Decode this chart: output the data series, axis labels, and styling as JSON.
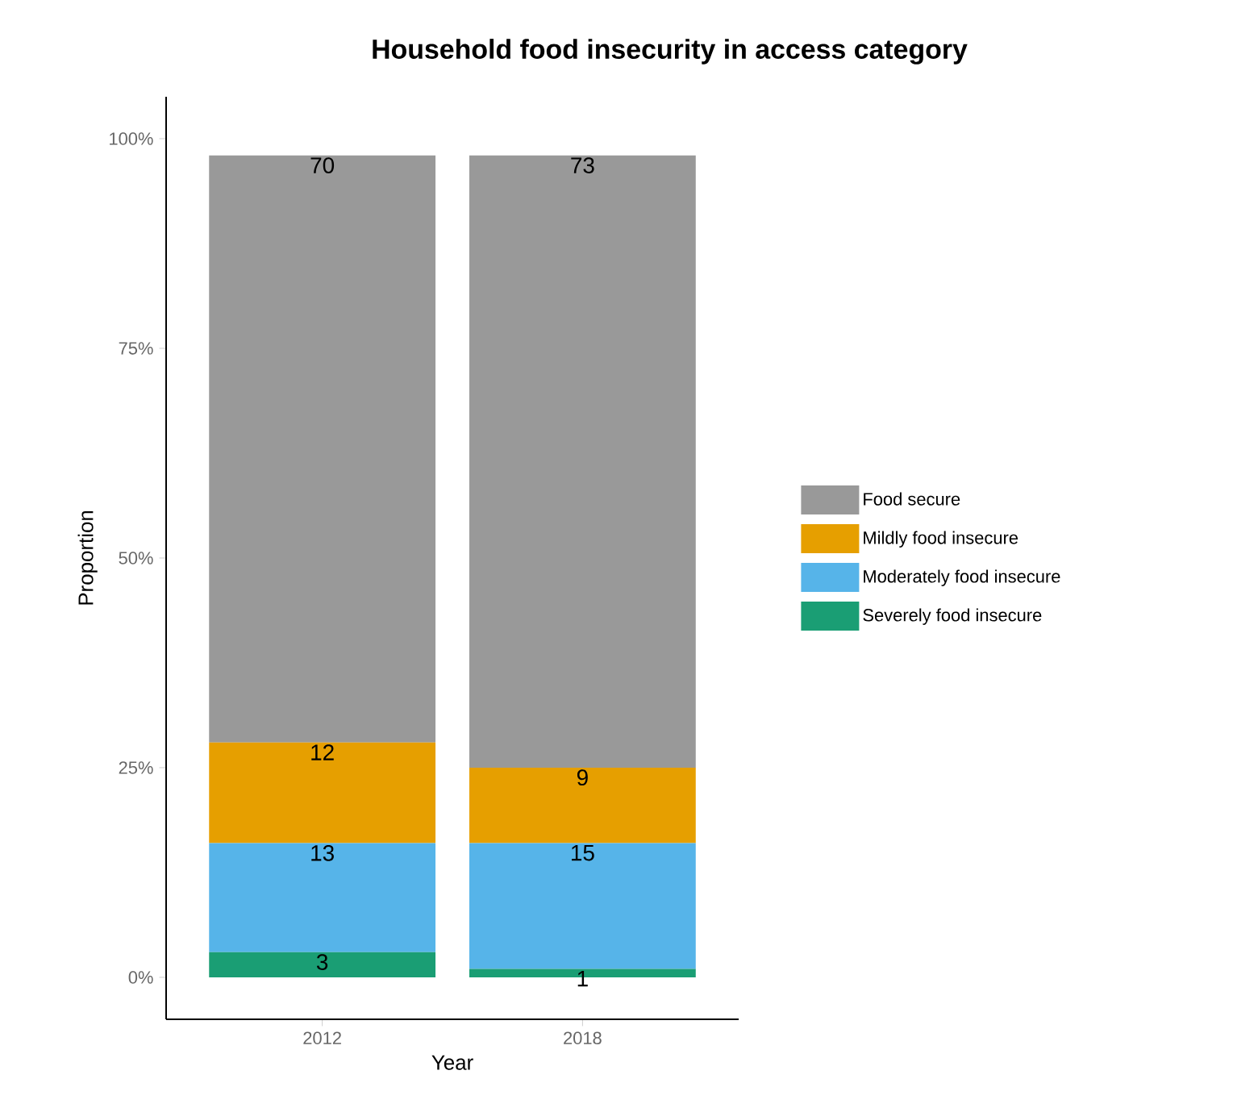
{
  "chart_data": {
    "type": "bar",
    "title": "Household food insecurity in access category",
    "xlabel": "Year",
    "ylabel": "Proportion",
    "categories": [
      "2012",
      "2018"
    ],
    "stacked": true,
    "legend": "right",
    "grid": false,
    "data_labels": true,
    "ylim": [
      -5,
      105
    ],
    "yticks": [
      {
        "value": 0,
        "label": "0%"
      },
      {
        "value": 25,
        "label": "25%"
      },
      {
        "value": 50,
        "label": "50%"
      },
      {
        "value": 75,
        "label": "75%"
      },
      {
        "value": 100,
        "label": "100%"
      }
    ],
    "series": [
      {
        "name": "Severely food insecure",
        "color": "#1a9e74",
        "values": [
          3,
          1
        ]
      },
      {
        "name": "Moderately food insecure",
        "color": "#56b4e9",
        "values": [
          13,
          15
        ]
      },
      {
        "name": "Mildly food insecure",
        "color": "#e69f00",
        "values": [
          12,
          9
        ]
      },
      {
        "name": "Food secure",
        "color": "#999999",
        "values": [
          70,
          73
        ]
      }
    ]
  }
}
